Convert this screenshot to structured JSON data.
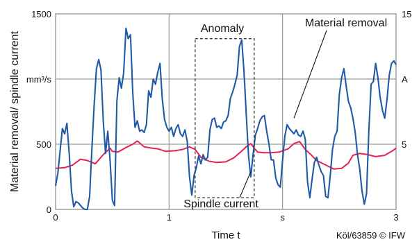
{
  "chart_data": {
    "type": "line",
    "ylabel": "Material removal/ spindle current",
    "y_left_unit": "mm³/s",
    "y_right_unit": "A",
    "xlabel": "Time t",
    "x_unit": "s",
    "credit": "Köl/63859 © IFW",
    "xlim": [
      0,
      3
    ],
    "ylim_left": [
      0,
      1500
    ],
    "ylim_right": [
      0,
      15
    ],
    "x_ticks": [
      "0",
      "1",
      "s",
      "3"
    ],
    "y_left_ticks": [
      "0",
      "500",
      "mm³/s",
      "1500"
    ],
    "y_right_ticks": [
      "5",
      "A",
      "15"
    ],
    "grid": true,
    "annotations": {
      "anomaly": "Anomaly",
      "material_removal": "Material removal",
      "spindle_current": "Spindle current"
    },
    "anomaly_window": {
      "x": [
        1.23,
        1.75
      ],
      "y_left": [
        90,
        1310
      ]
    },
    "series": [
      {
        "name": "Material removal",
        "axis": "left",
        "color": "#e8224f",
        "x": [
          0,
          0.08,
          0.15,
          0.22,
          0.28,
          0.35,
          0.42,
          0.48,
          0.5,
          0.55,
          0.62,
          0.68,
          0.72,
          0.78,
          0.85,
          0.9,
          0.97,
          1.05,
          1.12,
          1.18,
          1.23,
          1.28,
          1.35,
          1.42,
          1.5,
          1.57,
          1.63,
          1.68,
          1.72,
          1.75,
          1.78,
          1.83,
          1.9,
          1.97,
          2.05,
          2.1,
          2.15,
          2.2,
          2.25,
          2.3,
          2.37,
          2.45,
          2.52,
          2.58,
          2.62,
          2.68,
          2.75,
          2.82,
          2.9,
          2.97,
          3
        ],
        "values": [
          315,
          320,
          340,
          385,
          375,
          350,
          420,
          470,
          445,
          440,
          475,
          500,
          525,
          480,
          470,
          465,
          445,
          450,
          460,
          480,
          460,
          400,
          370,
          360,
          365,
          395,
          440,
          480,
          505,
          470,
          440,
          435,
          435,
          440,
          465,
          505,
          520,
          460,
          420,
          375,
          345,
          310,
          315,
          355,
          415,
          430,
          420,
          405,
          415,
          450,
          470
        ]
      },
      {
        "name": "Spindle current",
        "axis": "left",
        "color": "#1f5aa6",
        "x": [
          0,
          0.02,
          0.04,
          0.06,
          0.08,
          0.1,
          0.12,
          0.14,
          0.16,
          0.18,
          0.2,
          0.22,
          0.24,
          0.26,
          0.28,
          0.3,
          0.32,
          0.34,
          0.36,
          0.38,
          0.4,
          0.42,
          0.44,
          0.46,
          0.48,
          0.5,
          0.52,
          0.54,
          0.56,
          0.58,
          0.6,
          0.62,
          0.64,
          0.66,
          0.68,
          0.7,
          0.72,
          0.74,
          0.76,
          0.78,
          0.8,
          0.82,
          0.84,
          0.86,
          0.88,
          0.9,
          0.92,
          0.94,
          0.96,
          0.98,
          1,
          1.02,
          1.04,
          1.06,
          1.08,
          1.1,
          1.12,
          1.14,
          1.16,
          1.18,
          1.2,
          1.22,
          1.24,
          1.26,
          1.28,
          1.3,
          1.32,
          1.34,
          1.36,
          1.38,
          1.4,
          1.42,
          1.44,
          1.46,
          1.48,
          1.5,
          1.52,
          1.54,
          1.56,
          1.58,
          1.6,
          1.62,
          1.64,
          1.66,
          1.68,
          1.7,
          1.72,
          1.74,
          1.76,
          1.78,
          1.8,
          1.82,
          1.84,
          1.86,
          1.88,
          1.9,
          1.92,
          1.94,
          1.96,
          1.98,
          2,
          2.02,
          2.04,
          2.06,
          2.08,
          2.1,
          2.12,
          2.14,
          2.16,
          2.18,
          2.2,
          2.22,
          2.24,
          2.26,
          2.28,
          2.3,
          2.32,
          2.34,
          2.36,
          2.38,
          2.4,
          2.42,
          2.44,
          2.46,
          2.48,
          2.5,
          2.52,
          2.54,
          2.56,
          2.58,
          2.6,
          2.62,
          2.64,
          2.66,
          2.68,
          2.7,
          2.72,
          2.74,
          2.76,
          2.78,
          2.8,
          2.82,
          2.84,
          2.86,
          2.88,
          2.9,
          2.92,
          2.94,
          2.96,
          2.98,
          3
        ],
        "values": [
          180,
          280,
          450,
          620,
          580,
          660,
          430,
          140,
          20,
          60,
          50,
          30,
          10,
          0,
          0,
          100,
          470,
          800,
          1080,
          1150,
          1070,
          680,
          430,
          600,
          380,
          70,
          30,
          830,
          1010,
          930,
          1050,
          1390,
          1310,
          1340,
          890,
          630,
          680,
          600,
          610,
          590,
          650,
          910,
          860,
          1000,
          960,
          1050,
          1120,
          850,
          690,
          630,
          600,
          630,
          560,
          620,
          650,
          580,
          560,
          610,
          520,
          250,
          110,
          260,
          320,
          410,
          350,
          420,
          380,
          400,
          610,
          690,
          700,
          630,
          640,
          620,
          670,
          680,
          720,
          850,
          900,
          960,
          1030,
          1250,
          1300,
          1060,
          730,
          410,
          250,
          420,
          570,
          620,
          680,
          710,
          720,
          600,
          500,
          380,
          380,
          240,
          190,
          170,
          380,
          560,
          650,
          620,
          600,
          580,
          610,
          570,
          560,
          600,
          540,
          210,
          90,
          230,
          360,
          400,
          340,
          290,
          260,
          100,
          90,
          260,
          460,
          560,
          600,
          880,
          1010,
          1080,
          950,
          830,
          780,
          700,
          590,
          420,
          310,
          140,
          40,
          120,
          600,
          960,
          980,
          1120,
          1010,
          860,
          760,
          700,
          840,
          1030,
          1120,
          1140,
          1110
        ]
      }
    ]
  }
}
